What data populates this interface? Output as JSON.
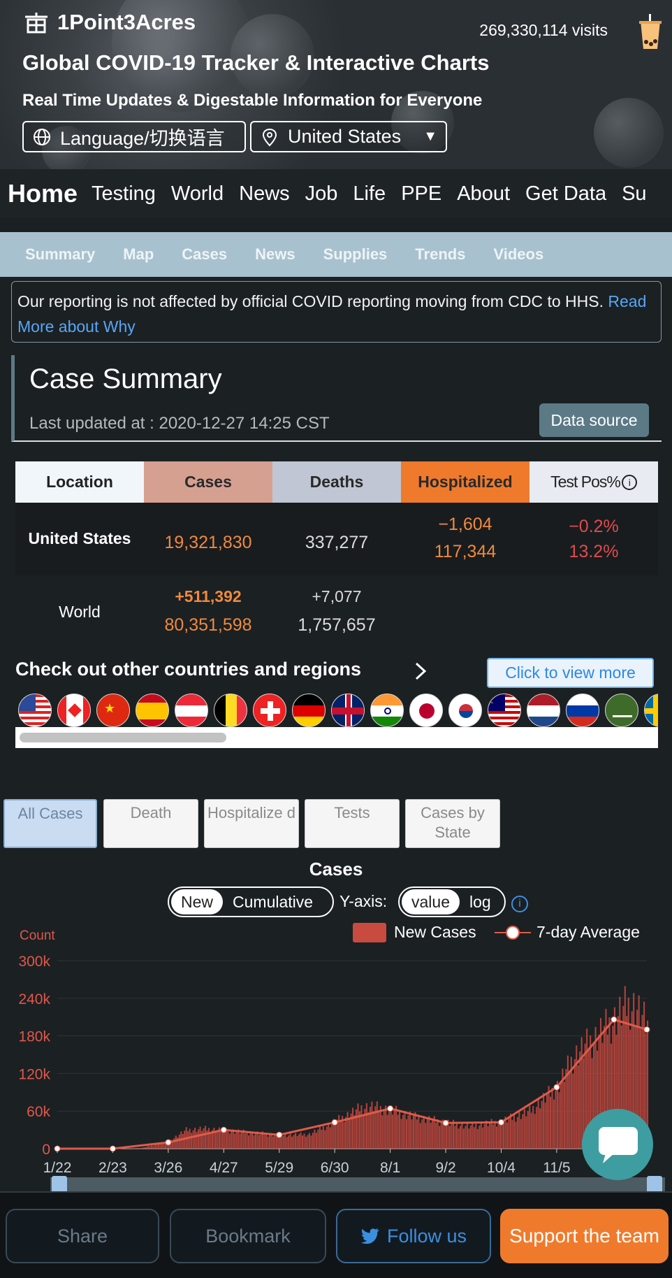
{
  "header": {
    "brand": "1Point3Acres",
    "visits": "269,330,114 visits",
    "title": "Global COVID-19 Tracker & Interactive Charts",
    "subtitle": "Real Time Updates & Digestable Information for Everyone",
    "language_btn": "Language/切换语言",
    "country_btn": "United States"
  },
  "main_nav": [
    "Home",
    "Testing",
    "World",
    "News",
    "Job",
    "Life",
    "PPE",
    "About",
    "Get Data",
    "Su"
  ],
  "sub_nav": [
    "Summary",
    "Map",
    "Cases",
    "News",
    "Supplies",
    "Trends",
    "Videos"
  ],
  "notice": {
    "text": "Our reporting is not affected by official COVID reporting moving from CDC to HHS.",
    "link": "Read More about Why"
  },
  "summary": {
    "title": "Case Summary",
    "updated": "Last updated at : 2020-12-27 14:25 CST",
    "data_source": "Data source",
    "headers": [
      "Location",
      "Cases",
      "Deaths",
      "Hospitalized",
      "Test Pos%"
    ],
    "rows": [
      {
        "location": "United States",
        "cases_new": "",
        "cases": "19,321,830",
        "deaths_new": "",
        "deaths": "337,277",
        "hosp_change": "−1,604",
        "hosp": "117,344",
        "pos_change": "−0.2%",
        "pos": "13.2%"
      },
      {
        "location": "World",
        "cases_new": "+511,392",
        "cases": "80,351,598",
        "deaths_new": "+7,077",
        "deaths": "1,757,657",
        "hosp_change": "",
        "hosp": "",
        "pos_change": "",
        "pos": ""
      }
    ]
  },
  "other_regions": {
    "title": "Check out other countries and regions",
    "view_more": "Click to view more",
    "flags": [
      "us-flag",
      "canada-flag",
      "china-flag",
      "spain-flag",
      "austria-flag",
      "belgium-flag",
      "switzerland-flag",
      "germany-flag",
      "uk-flag",
      "india-flag",
      "japan-flag",
      "korea-flag",
      "malaysia-flag",
      "netherlands-flag",
      "russia-flag",
      "saudi-arabia-flag",
      "sweden-flag"
    ]
  },
  "chart_tabs": [
    "All Cases",
    "Death",
    "Hospitalize d",
    "Tests",
    "Cases by State"
  ],
  "chart_controls": {
    "mode": [
      "New",
      "Cumulative"
    ],
    "yaxis_label": "Y-axis:",
    "scale": [
      "value",
      "log"
    ],
    "legend_new": "New Cases",
    "legend_avg": "7-day Average"
  },
  "chart_data": {
    "type": "bar",
    "title": "Cases",
    "ylabel": "Count",
    "xlabel": "",
    "ylim": [
      0,
      300000
    ],
    "yticks": [
      "0",
      "60k",
      "120k",
      "180k",
      "240k",
      "300k"
    ],
    "x_ticks": [
      "1/22",
      "2/23",
      "3/26",
      "4/27",
      "5/29",
      "6/30",
      "8/1",
      "9/2",
      "10/4",
      "11/5"
    ],
    "series": [
      {
        "name": "New Cases",
        "color": "#c94a3f",
        "x": [
          "1/22",
          "2/23",
          "3/10",
          "3/26",
          "4/5",
          "4/15",
          "4/27",
          "5/10",
          "5/29",
          "6/15",
          "6/30",
          "7/15",
          "7/20",
          "8/1",
          "8/15",
          "9/2",
          "9/15",
          "10/4",
          "10/20",
          "11/5",
          "11/15",
          "11/25",
          "12/5",
          "12/15",
          "12/20",
          "12/27"
        ],
        "values": [
          0,
          100,
          1000,
          12000,
          30000,
          32000,
          30000,
          26000,
          22000,
          23000,
          44000,
          66000,
          68000,
          62000,
          51000,
          42000,
          36000,
          44000,
          60000,
          100000,
          150000,
          175000,
          200000,
          230000,
          230000,
          195000
        ]
      },
      {
        "name": "7-day Average",
        "color": "#e05a4a",
        "x": [
          "1/22",
          "2/23",
          "3/26",
          "4/27",
          "5/29",
          "6/30",
          "8/1",
          "9/2",
          "10/4",
          "11/5",
          "12/8",
          "12/27"
        ],
        "values": [
          0,
          0,
          10000,
          30000,
          22000,
          42000,
          64000,
          41000,
          42000,
          98000,
          206000,
          190000
        ]
      }
    ]
  },
  "footer": {
    "share": "Share",
    "bookmark": "Bookmark",
    "follow": "Follow us",
    "support": "Support the team"
  },
  "colors": {
    "accent": "#f07a2c",
    "cases": "#d6a091",
    "deaths": "#c0c6d3",
    "hospitalized": "#ef7a2c",
    "link": "#58a6f5",
    "bars": "#c94a3f"
  }
}
